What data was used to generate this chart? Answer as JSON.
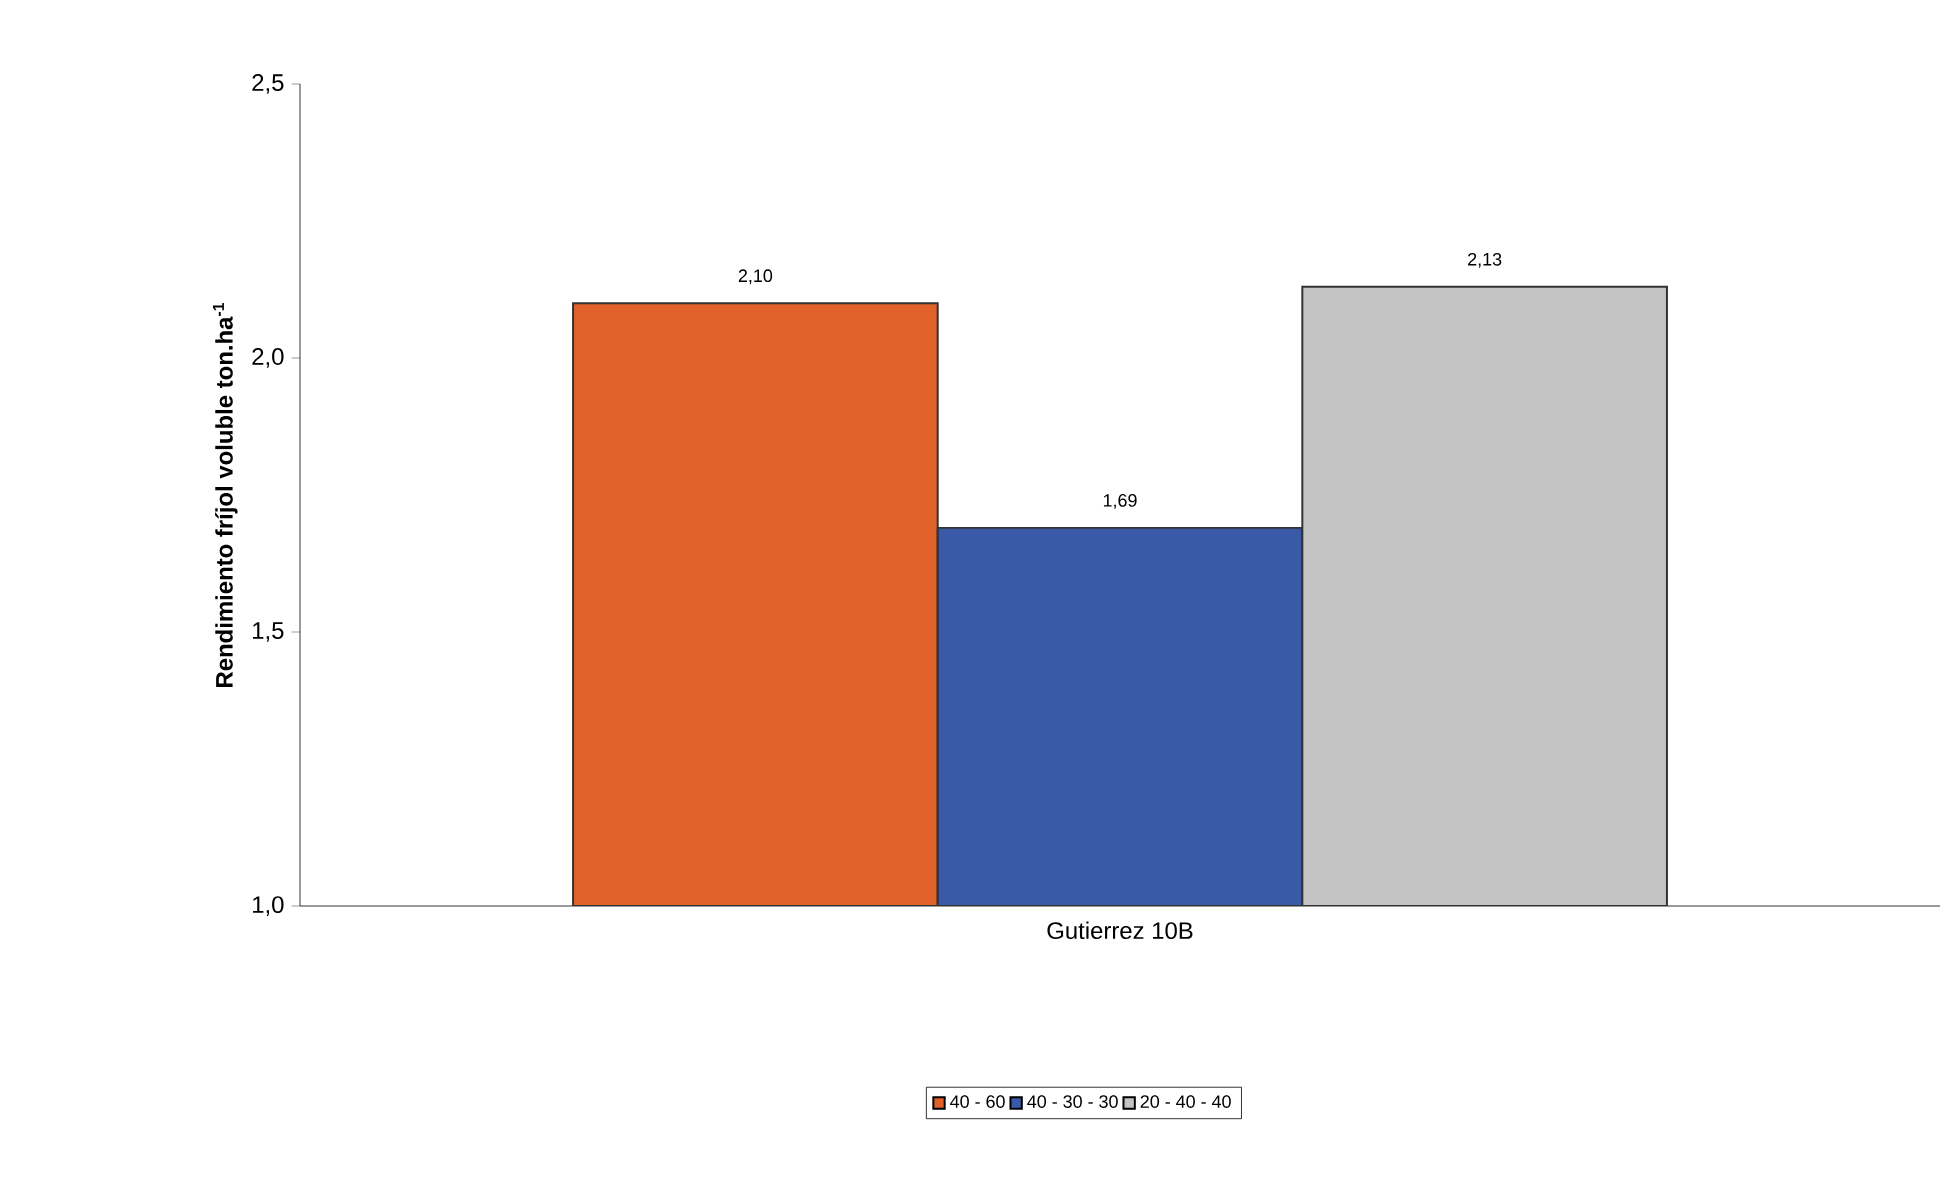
{
  "chart_data": {
    "type": "bar",
    "ylabel": "Rendimiento fríjol voluble ton.ha$^{-1}$",
    "categories": [
      "Gutierrez 10B"
    ],
    "series": [
      {
        "name": "40 - 60",
        "color": "#e0622a",
        "values": [
          2.1
        ],
        "value_labels": [
          "2,10"
        ]
      },
      {
        "name": "40 - 30 - 30",
        "color": "#3a5aa8",
        "values": [
          1.69
        ],
        "value_labels": [
          "1,69"
        ]
      },
      {
        "name": "20 - 40 - 40",
        "color": "#c4c4c4",
        "values": [
          2.13
        ],
        "value_labels": [
          "2,13"
        ]
      }
    ],
    "ylim": [
      1.0,
      2.5
    ],
    "yticks": [
      {
        "value": 1.0,
        "label": "1,0"
      },
      {
        "value": 1.5,
        "label": "1,5"
      },
      {
        "value": 2.0,
        "label": "2,0"
      },
      {
        "value": 2.5,
        "label": "2,5"
      }
    ],
    "grid": false,
    "legend": "bottom"
  }
}
